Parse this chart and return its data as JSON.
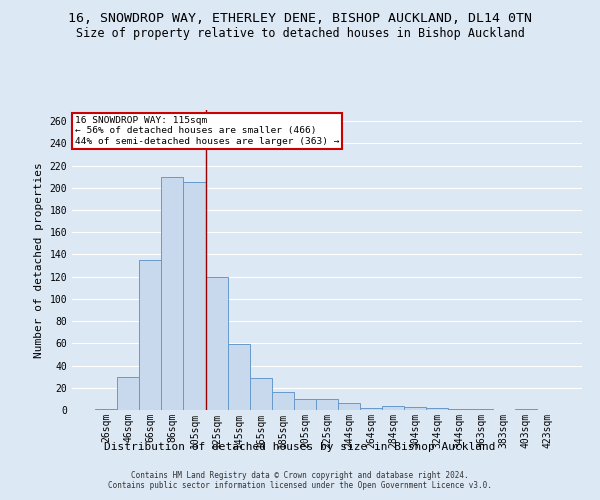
{
  "categories": [
    "26sqm",
    "46sqm",
    "66sqm",
    "86sqm",
    "105sqm",
    "125sqm",
    "145sqm",
    "165sqm",
    "185sqm",
    "205sqm",
    "225sqm",
    "244sqm",
    "264sqm",
    "284sqm",
    "304sqm",
    "324sqm",
    "344sqm",
    "363sqm",
    "383sqm",
    "403sqm",
    "423sqm"
  ],
  "values": [
    1,
    30,
    135,
    210,
    205,
    120,
    59,
    29,
    16,
    10,
    10,
    6,
    2,
    4,
    3,
    2,
    1,
    1,
    0,
    1,
    0
  ],
  "bar_color": "#c8d9ee",
  "bar_edge_color": "#6699cc",
  "title_line1": "16, SNOWDROP WAY, ETHERLEY DENE, BISHOP AUCKLAND, DL14 0TN",
  "title_line2": "Size of property relative to detached houses in Bishop Auckland",
  "xlabel": "Distribution of detached houses by size in Bishop Auckland",
  "ylabel": "Number of detached properties",
  "ylim": [
    0,
    270
  ],
  "vline_x": 4.5,
  "vline_color": "#990000",
  "annotation_title": "16 SNOWDROP WAY: 115sqm",
  "annotation_line1": "← 56% of detached houses are smaller (466)",
  "annotation_line2": "44% of semi-detached houses are larger (363) →",
  "annotation_box_color": "#ffffff",
  "annotation_box_edge": "#cc0000",
  "background_color": "#dde8f5",
  "grid_color": "#ffffff",
  "footer_line1": "Contains HM Land Registry data © Crown copyright and database right 2024.",
  "footer_line2": "Contains public sector information licensed under the Open Government Licence v3.0.",
  "title_fontsize": 9.5,
  "subtitle_fontsize": 8.5,
  "axis_label_fontsize": 8,
  "tick_fontsize": 7,
  "footer_fontsize": 5.5
}
